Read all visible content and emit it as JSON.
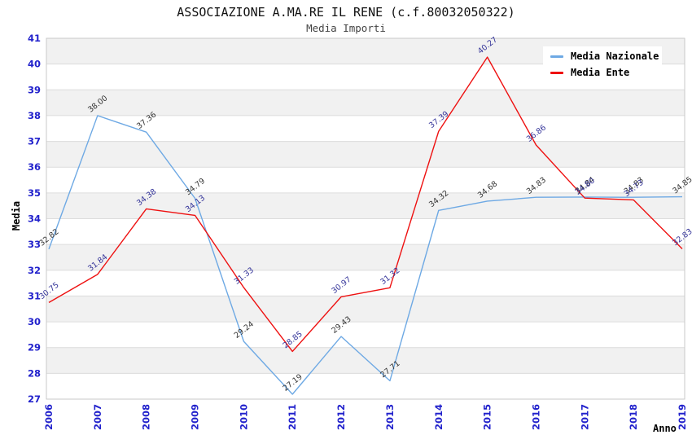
{
  "chart_data": {
    "type": "line",
    "title": "ASSOCIAZIONE A.MA.RE IL RENE (c.f.80032050322)",
    "subtitle": "Media Importi",
    "xlabel": "Anno",
    "ylabel": "Media",
    "x": [
      2006,
      2007,
      2008,
      2009,
      2010,
      2011,
      2012,
      2013,
      2014,
      2015,
      2016,
      2017,
      2018,
      2019
    ],
    "series": [
      {
        "name": "Media Nazionale",
        "color": "#6ea9e4",
        "label_color": "#333333",
        "values": [
          32.82,
          38.0,
          37.36,
          34.79,
          29.24,
          27.19,
          29.43,
          27.71,
          34.32,
          34.68,
          34.83,
          34.84,
          34.83,
          34.85
        ]
      },
      {
        "name": "Media Ente",
        "color": "#ee1111",
        "label_color": "#333399",
        "values": [
          30.75,
          31.84,
          34.38,
          34.13,
          31.33,
          28.85,
          30.97,
          31.32,
          37.39,
          40.27,
          36.86,
          34.8,
          34.73,
          32.83
        ]
      }
    ],
    "ylim": [
      27,
      41
    ],
    "ytick_step": 1,
    "legend_position": "top-right",
    "grid": "alternating-horizontal-bands",
    "style": {
      "band_color": "#f1f1f1",
      "gridline_color": "#dcdcdc",
      "plot_border_color": "#c9c9c9",
      "tick_label_color": "#2222cc",
      "background": "#ffffff"
    }
  }
}
